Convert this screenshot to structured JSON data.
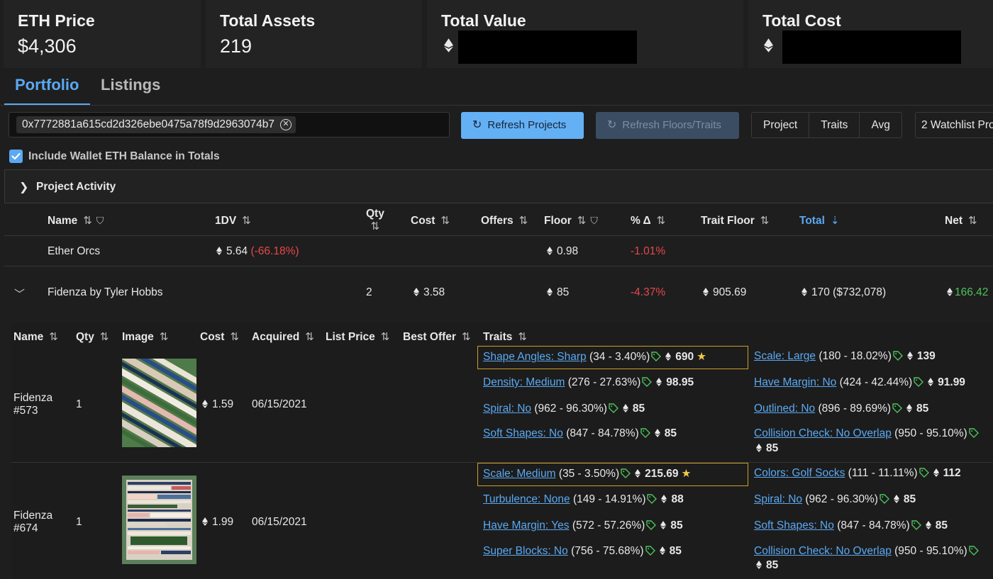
{
  "stats": {
    "eth_price": {
      "label": "ETH Price",
      "value": "$4,306"
    },
    "total_assets": {
      "label": "Total Assets",
      "value": "219"
    },
    "total_value": {
      "label": "Total Value"
    },
    "total_cost": {
      "label": "Total Cost"
    }
  },
  "tabs": [
    {
      "label": "Portfolio",
      "active": true
    },
    {
      "label": "Listings",
      "active": false
    }
  ],
  "controls": {
    "wallet_address": "0x7772881a615cd2d326ebe0475a78f9d2963074b7",
    "refresh_projects": "Refresh Projects",
    "refresh_floors": "Refresh Floors/Traits",
    "segments": [
      "Project",
      "Traits",
      "Avg"
    ],
    "watchlist": "2 Watchlist Pro",
    "include_balance_label": "Include Wallet ETH Balance in Totals"
  },
  "accordion": {
    "label": "Project Activity"
  },
  "table": {
    "headers": {
      "name": "Name",
      "dv": "1DV",
      "qty": "Qty",
      "cost": "Cost",
      "offers": "Offers",
      "floor": "Floor",
      "pct": "% Δ",
      "trait_floor": "Trait Floor",
      "total": "Total",
      "net": "Net"
    },
    "rows": [
      {
        "name": "Ether Orcs",
        "dv": "5.64",
        "dv_change": "(-66.18%)",
        "floor": "0.98",
        "pct": "-1.01%"
      },
      {
        "name": "Fidenza by Tyler Hobbs",
        "qty": "2",
        "cost": "3.58",
        "floor": "85",
        "pct": "-4.37%",
        "trait_floor": "905.69",
        "total": "170 ($732,078)",
        "net": "166.42"
      }
    ]
  },
  "subtable": {
    "headers": {
      "name": "Name",
      "qty": "Qty",
      "image": "Image",
      "cost": "Cost",
      "acquired": "Acquired",
      "list_price": "List Price",
      "best_offer": "Best Offer",
      "traits": "Traits"
    },
    "items": [
      {
        "name_line1": "Fidenza",
        "name_line2": "#573",
        "qty": "1",
        "cost": "1.59",
        "acquired": "06/15/2021",
        "traits_left": [
          {
            "name": "Shape Angles: Sharp",
            "stat": "(34 - 3.40%)",
            "value": "690",
            "star": "★"
          },
          {
            "name": "Density: Medium",
            "stat": "(276 - 27.63%)",
            "value": "98.95"
          },
          {
            "name": "Spiral: No",
            "stat": "(962 - 96.30%)",
            "value": "85"
          },
          {
            "name": "Soft Shapes: No",
            "stat": "(847 - 84.78%)",
            "value": "85"
          }
        ],
        "traits_right": [
          {
            "name": "Scale: Large",
            "stat": "(180 - 18.02%)",
            "value": "139"
          },
          {
            "name": "Have Margin: No",
            "stat": "(424 - 42.44%)",
            "value": "91.99"
          },
          {
            "name": "Outlined: No",
            "stat": "(896 - 89.69%)",
            "value": "85"
          },
          {
            "name": "Collision Check: No Overlap",
            "stat": "(950 - 95.10%)",
            "value": "85"
          }
        ]
      },
      {
        "name_line1": "Fidenza",
        "name_line2": "#674",
        "qty": "1",
        "cost": "1.99",
        "acquired": "06/15/2021",
        "traits_left": [
          {
            "name": "Scale: Medium",
            "stat": "(35 - 3.50%)",
            "value": "215.69",
            "star": "★"
          },
          {
            "name": "Turbulence: None",
            "stat": "(149 - 14.91%)",
            "value": "88"
          },
          {
            "name": "Have Margin: Yes",
            "stat": "(572 - 57.26%)",
            "value": "85"
          },
          {
            "name": "Super Blocks: No",
            "stat": "(756 - 75.68%)",
            "value": "85"
          }
        ],
        "traits_right": [
          {
            "name": "Colors: Golf Socks",
            "stat": "(111 - 11.11%)",
            "value": "112"
          },
          {
            "name": "Spiral: No",
            "stat": "(962 - 96.30%)",
            "value": "85"
          },
          {
            "name": "Soft Shapes: No",
            "stat": "(847 - 84.78%)",
            "value": "85"
          },
          {
            "name": "Collision Check: No Overlap",
            "stat": "(950 - 95.10%)",
            "value": "85"
          }
        ]
      }
    ]
  },
  "icons": {
    "eth": "ethereum-icon",
    "tag": "price-tag-icon",
    "refresh": "refresh-icon",
    "star": "star-icon"
  },
  "colors": {
    "accent": "#5aa9f2",
    "negative": "#e5484d",
    "positive": "#4cc35a",
    "highlight": "#c9a227"
  }
}
